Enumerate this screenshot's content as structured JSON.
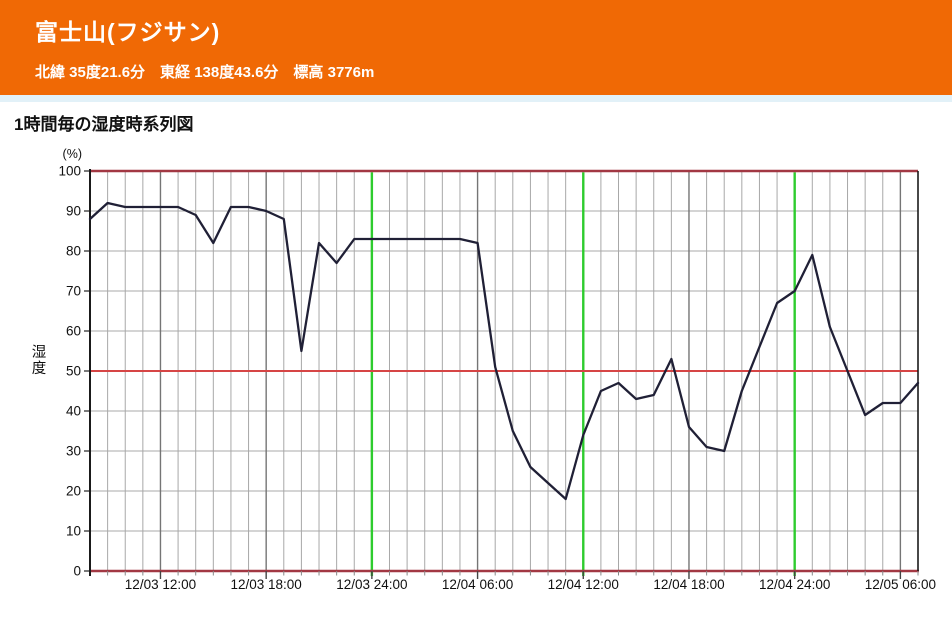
{
  "header": {
    "title": "富士山(フジサン)",
    "subtitle": "北緯 35度21.6分　東経 138度43.6分　標高 3776m"
  },
  "chart": {
    "title": "1時間毎の湿度時系列図",
    "unit_label": "(%)",
    "ylabel": "湿度"
  },
  "colors": {
    "accent_orange": "#f06905",
    "divider_blue": "#e2f1f8",
    "data_line": "#202036",
    "grid_minor": "#a8a8a8",
    "grid_major": "#757575",
    "green_line": "#2ecc2e",
    "red_mid_line": "#d64545",
    "red_border": "#a23843",
    "axis_dark": "#1a1a1a",
    "label_text": "#101010"
  },
  "chart_data": {
    "type": "line",
    "title": "1時間毎の湿度時系列図",
    "ylabel": "湿度",
    "unit": "(%)",
    "ylim": [
      0,
      100
    ],
    "ytick_interval": 10,
    "grid": true,
    "x_start": "12/03 08:00",
    "x_end": "12/05 07:00",
    "x_interval_hours": 1,
    "x_tick_labels": [
      {
        "hour": 4,
        "label": "12/03 12:00"
      },
      {
        "hour": 10,
        "label": "12/03 18:00"
      },
      {
        "hour": 16,
        "label": "12/03 24:00"
      },
      {
        "hour": 22,
        "label": "12/04 06:00"
      },
      {
        "hour": 28,
        "label": "12/04 12:00"
      },
      {
        "hour": 34,
        "label": "12/04 18:00"
      },
      {
        "hour": 40,
        "label": "12/04 24:00"
      },
      {
        "hour": 46,
        "label": "12/05 06:00"
      }
    ],
    "green_vertical_line_hours": [
      16,
      28,
      40
    ],
    "red_horizontal_line_values": [
      0,
      50,
      100
    ],
    "series": [
      {
        "name": "湿度",
        "values": [
          88,
          92,
          91,
          91,
          91,
          91,
          89,
          82,
          91,
          91,
          90,
          88,
          55,
          82,
          77,
          83,
          83,
          83,
          83,
          83,
          83,
          83,
          82,
          51,
          35,
          26,
          22,
          18,
          34,
          45,
          47,
          43,
          44,
          53,
          36,
          31,
          30,
          45,
          56,
          67,
          70,
          79,
          61,
          50,
          39,
          42,
          42,
          47
        ]
      }
    ]
  }
}
